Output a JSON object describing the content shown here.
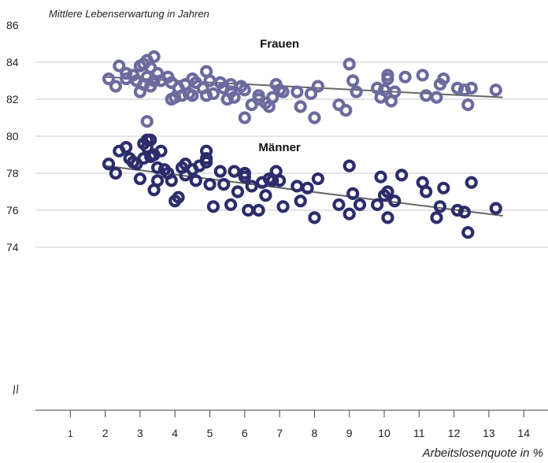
{
  "chart_data": {
    "type": "scatter",
    "title": "",
    "ylabel": "Mittlere Lebenserwartung in Jahren",
    "xlabel": "Arbeitslosenquote in %",
    "xlim": [
      0,
      14.5
    ],
    "ylim": [
      71.5,
      86
    ],
    "y_axis_break": true,
    "x_ticks": [
      "1",
      "2",
      "3",
      "4",
      "5",
      "6",
      "7",
      "8",
      "9",
      "10",
      "11",
      "12",
      "13",
      "14"
    ],
    "y_ticks": [
      "74",
      "76",
      "78",
      "80",
      "82",
      "84",
      "86"
    ],
    "grid": "horizontal",
    "series": [
      {
        "name": "Frauen",
        "color": "#6b6b9e",
        "trend": [
          [
            2.0,
            83.2
          ],
          [
            13.4,
            82.1
          ]
        ],
        "points": [
          [
            2.1,
            83.1
          ],
          [
            2.3,
            82.7
          ],
          [
            2.4,
            83.8
          ],
          [
            2.6,
            83.4
          ],
          [
            2.6,
            83.1
          ],
          [
            2.8,
            83.3
          ],
          [
            2.9,
            83.0
          ],
          [
            3.0,
            82.4
          ],
          [
            3.0,
            83.8
          ],
          [
            3.1,
            83.9
          ],
          [
            3.1,
            82.8
          ],
          [
            3.2,
            84.1
          ],
          [
            3.2,
            83.2
          ],
          [
            3.3,
            83.7
          ],
          [
            3.3,
            82.7
          ],
          [
            3.4,
            84.3
          ],
          [
            3.4,
            83.0
          ],
          [
            3.5,
            83.4
          ],
          [
            3.6,
            83.0
          ],
          [
            3.8,
            83.2
          ],
          [
            3.9,
            82.0
          ],
          [
            3.9,
            82.9
          ],
          [
            4.0,
            82.1
          ],
          [
            4.1,
            82.6
          ],
          [
            4.2,
            82.2
          ],
          [
            4.3,
            82.8
          ],
          [
            4.4,
            82.3
          ],
          [
            4.5,
            82.2
          ],
          [
            4.5,
            83.1
          ],
          [
            4.6,
            82.9
          ],
          [
            4.8,
            82.6
          ],
          [
            4.9,
            83.5
          ],
          [
            4.9,
            82.2
          ],
          [
            5.0,
            83.0
          ],
          [
            5.1,
            82.3
          ],
          [
            5.3,
            82.9
          ],
          [
            5.4,
            82.6
          ],
          [
            5.5,
            82.0
          ],
          [
            5.6,
            82.8
          ],
          [
            5.6,
            82.4
          ],
          [
            5.7,
            82.1
          ],
          [
            5.9,
            82.7
          ],
          [
            6.0,
            81.0
          ],
          [
            6.0,
            82.5
          ],
          [
            6.2,
            81.7
          ],
          [
            6.4,
            82.0
          ],
          [
            6.4,
            82.2
          ],
          [
            6.6,
            81.8
          ],
          [
            6.7,
            81.6
          ],
          [
            6.8,
            82.1
          ],
          [
            6.9,
            82.8
          ],
          [
            7.0,
            82.5
          ],
          [
            7.1,
            82.4
          ],
          [
            7.5,
            82.4
          ],
          [
            7.6,
            81.6
          ],
          [
            7.9,
            82.3
          ],
          [
            8.0,
            81.0
          ],
          [
            8.1,
            82.7
          ],
          [
            8.7,
            81.7
          ],
          [
            8.9,
            81.4
          ],
          [
            9.0,
            83.9
          ],
          [
            9.1,
            83.0
          ],
          [
            9.2,
            82.4
          ],
          [
            9.8,
            82.6
          ],
          [
            9.9,
            82.1
          ],
          [
            10.0,
            82.5
          ],
          [
            10.1,
            83.3
          ],
          [
            10.1,
            83.1
          ],
          [
            10.2,
            81.9
          ],
          [
            10.3,
            82.4
          ],
          [
            10.6,
            83.2
          ],
          [
            11.1,
            83.3
          ],
          [
            11.2,
            82.2
          ],
          [
            11.5,
            82.1
          ],
          [
            11.6,
            82.8
          ],
          [
            11.7,
            83.1
          ],
          [
            12.1,
            82.6
          ],
          [
            12.3,
            82.5
          ],
          [
            12.4,
            81.7
          ],
          [
            12.5,
            82.6
          ],
          [
            13.2,
            82.5
          ],
          [
            3.2,
            80.8
          ]
        ]
      },
      {
        "name": "Männer",
        "color": "#2b2d6b",
        "trend": [
          [
            2.0,
            78.4
          ],
          [
            13.4,
            75.7
          ]
        ],
        "points": [
          [
            2.1,
            78.5
          ],
          [
            2.3,
            78.0
          ],
          [
            2.4,
            79.2
          ],
          [
            2.6,
            79.4
          ],
          [
            2.7,
            78.8
          ],
          [
            2.8,
            78.6
          ],
          [
            2.9,
            78.5
          ],
          [
            3.0,
            77.7
          ],
          [
            3.1,
            79.6
          ],
          [
            3.1,
            78.8
          ],
          [
            3.2,
            79.8
          ],
          [
            3.2,
            79.4
          ],
          [
            3.3,
            79.8
          ],
          [
            3.3,
            78.9
          ],
          [
            3.4,
            77.1
          ],
          [
            3.4,
            79.0
          ],
          [
            3.5,
            78.3
          ],
          [
            3.5,
            77.6
          ],
          [
            3.6,
            79.2
          ],
          [
            3.7,
            78.2
          ],
          [
            3.8,
            78.0
          ],
          [
            3.9,
            77.6
          ],
          [
            4.0,
            76.5
          ],
          [
            4.1,
            76.7
          ],
          [
            4.2,
            78.3
          ],
          [
            4.3,
            77.9
          ],
          [
            4.3,
            78.5
          ],
          [
            4.5,
            78.2
          ],
          [
            4.6,
            77.6
          ],
          [
            4.7,
            78.4
          ],
          [
            4.9,
            78.6
          ],
          [
            4.9,
            79.2
          ],
          [
            4.9,
            78.8
          ],
          [
            5.0,
            77.4
          ],
          [
            5.1,
            76.2
          ],
          [
            5.3,
            78.1
          ],
          [
            5.4,
            77.4
          ],
          [
            5.6,
            76.3
          ],
          [
            5.7,
            78.1
          ],
          [
            5.8,
            77.0
          ],
          [
            6.0,
            78.0
          ],
          [
            6.0,
            77.8
          ],
          [
            6.1,
            76.0
          ],
          [
            6.2,
            77.3
          ],
          [
            6.4,
            76.0
          ],
          [
            6.5,
            77.5
          ],
          [
            6.6,
            76.8
          ],
          [
            6.7,
            77.7
          ],
          [
            6.8,
            77.6
          ],
          [
            6.9,
            78.1
          ],
          [
            7.0,
            77.6
          ],
          [
            7.1,
            76.2
          ],
          [
            7.5,
            77.3
          ],
          [
            7.6,
            76.5
          ],
          [
            7.8,
            77.2
          ],
          [
            8.0,
            75.6
          ],
          [
            8.1,
            77.7
          ],
          [
            8.7,
            76.3
          ],
          [
            9.0,
            78.4
          ],
          [
            9.0,
            75.8
          ],
          [
            9.1,
            76.9
          ],
          [
            9.3,
            76.3
          ],
          [
            9.8,
            76.3
          ],
          [
            9.9,
            77.8
          ],
          [
            10.0,
            76.8
          ],
          [
            10.1,
            77.0
          ],
          [
            10.1,
            75.6
          ],
          [
            10.3,
            76.5
          ],
          [
            10.5,
            77.9
          ],
          [
            11.1,
            77.5
          ],
          [
            11.2,
            77.0
          ],
          [
            11.5,
            75.6
          ],
          [
            11.6,
            76.2
          ],
          [
            11.7,
            77.2
          ],
          [
            12.1,
            76.0
          ],
          [
            12.3,
            75.9
          ],
          [
            12.4,
            74.8
          ],
          [
            12.5,
            77.5
          ],
          [
            13.2,
            76.1
          ]
        ]
      }
    ],
    "annotations": [
      {
        "text": "Frauen",
        "x": 7.0,
        "y": 85.0
      },
      {
        "text": "Männer",
        "x": 7.0,
        "y": 79.4
      }
    ],
    "axis_break_mark": "//"
  }
}
